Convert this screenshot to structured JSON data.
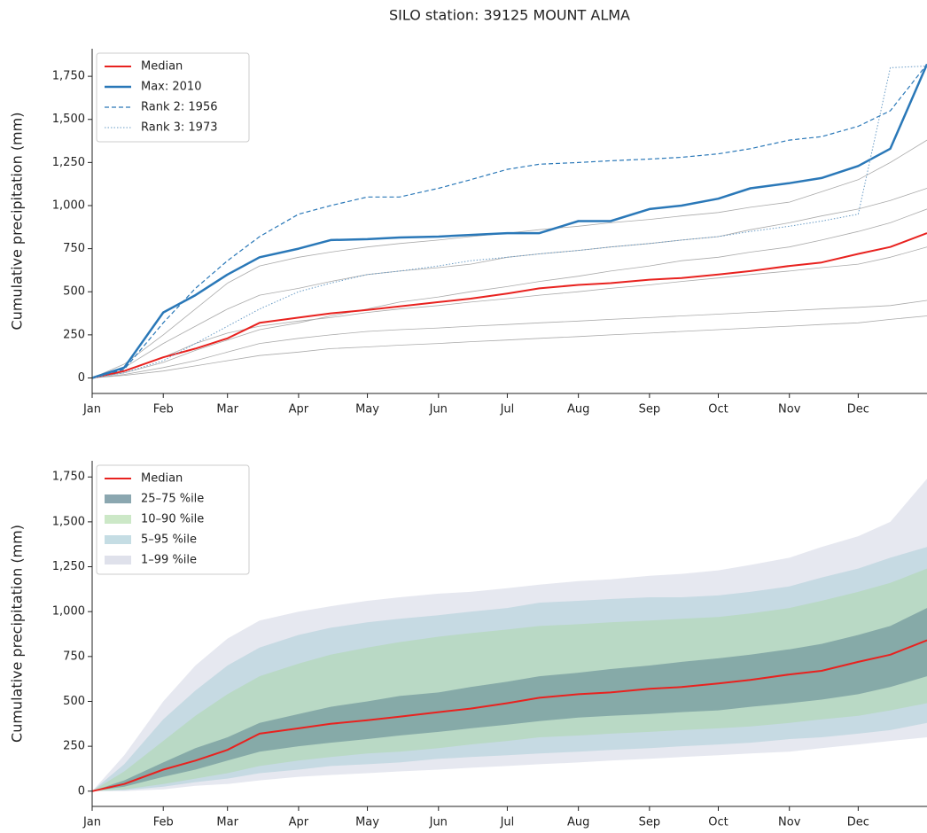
{
  "title": "SILO station: 39125 MOUNT ALMA",
  "chart_data": [
    {
      "type": "line",
      "ylabel": "Cumulative precipitation (mm)",
      "x": [
        1,
        15,
        32,
        46,
        60,
        74,
        91,
        105,
        121,
        135,
        152,
        166,
        182,
        196,
        213,
        227,
        244,
        258,
        274,
        288,
        305,
        319,
        335,
        349,
        365
      ],
      "xlim": [
        1,
        365
      ],
      "xticks": [
        {
          "value": 1,
          "label": "Jan"
        },
        {
          "value": 32,
          "label": "Feb"
        },
        {
          "value": 60,
          "label": "Mar"
        },
        {
          "value": 91,
          "label": "Apr"
        },
        {
          "value": 121,
          "label": "May"
        },
        {
          "value": 152,
          "label": "Jun"
        },
        {
          "value": 182,
          "label": "Jul"
        },
        {
          "value": 213,
          "label": "Aug"
        },
        {
          "value": 244,
          "label": "Sep"
        },
        {
          "value": 274,
          "label": "Oct"
        },
        {
          "value": 305,
          "label": "Nov"
        },
        {
          "value": 335,
          "label": "Dec"
        }
      ],
      "ylim": [
        -90,
        1910
      ],
      "yticks": [
        0,
        250,
        500,
        750,
        {
          "value": 1000,
          "label": "1,000"
        },
        {
          "value": 1250,
          "label": "1,250"
        },
        {
          "value": 1500,
          "label": "1,500"
        },
        {
          "value": 1750,
          "label": "1,750"
        }
      ],
      "legend": "upper left",
      "series": [
        {
          "color": "#aaaaaa",
          "width": 0.8,
          "style": "solid",
          "values": [
            0,
            20,
            60,
            100,
            150,
            200,
            230,
            250,
            270,
            280,
            290,
            300,
            310,
            320,
            330,
            340,
            350,
            360,
            370,
            380,
            390,
            400,
            410,
            420,
            450
          ]
        },
        {
          "color": "#aaaaaa",
          "width": 0.8,
          "style": "solid",
          "values": [
            0,
            60,
            200,
            300,
            400,
            480,
            520,
            560,
            600,
            620,
            640,
            660,
            700,
            720,
            740,
            760,
            780,
            800,
            820,
            860,
            900,
            940,
            980,
            1030,
            1100
          ]
        },
        {
          "color": "#aaaaaa",
          "width": 0.8,
          "style": "solid",
          "values": [
            0,
            40,
            120,
            200,
            260,
            300,
            330,
            350,
            380,
            400,
            420,
            440,
            460,
            480,
            500,
            520,
            540,
            560,
            580,
            600,
            620,
            640,
            660,
            700,
            760
          ]
        },
        {
          "color": "#aaaaaa",
          "width": 0.8,
          "style": "solid",
          "values": [
            0,
            80,
            250,
            400,
            550,
            650,
            700,
            730,
            760,
            780,
            800,
            820,
            840,
            860,
            880,
            900,
            920,
            940,
            960,
            990,
            1020,
            1080,
            1150,
            1250,
            1380
          ]
        },
        {
          "color": "#aaaaaa",
          "width": 0.8,
          "style": "solid",
          "values": [
            0,
            15,
            40,
            70,
            100,
            130,
            150,
            170,
            180,
            190,
            200,
            210,
            220,
            230,
            240,
            250,
            260,
            270,
            280,
            290,
            300,
            310,
            320,
            340,
            360
          ]
        },
        {
          "color": "#aaaaaa",
          "width": 0.8,
          "style": "solid",
          "values": [
            0,
            30,
            90,
            160,
            220,
            280,
            320,
            360,
            400,
            440,
            470,
            500,
            530,
            560,
            590,
            620,
            650,
            680,
            700,
            730,
            760,
            800,
            850,
            900,
            980
          ]
        },
        {
          "name": "Median",
          "color": "#e8221f",
          "width": 2,
          "style": "solid",
          "values": [
            0,
            40,
            120,
            170,
            230,
            320,
            350,
            375,
            395,
            415,
            440,
            460,
            490,
            520,
            540,
            550,
            570,
            580,
            600,
            620,
            650,
            670,
            720,
            760,
            840
          ]
        },
        {
          "name": "Max: 2010",
          "color": "#2a78b8",
          "width": 2.5,
          "style": "solid",
          "values": [
            0,
            60,
            380,
            480,
            600,
            700,
            750,
            800,
            805,
            815,
            820,
            830,
            840,
            840,
            910,
            910,
            980,
            1000,
            1040,
            1100,
            1130,
            1160,
            1230,
            1330,
            1820
          ]
        },
        {
          "name": "Rank 2: 1956",
          "color": "#2a78b8",
          "width": 1.2,
          "style": "dashed",
          "values": [
            0,
            50,
            320,
            520,
            680,
            820,
            950,
            1000,
            1050,
            1050,
            1100,
            1150,
            1210,
            1240,
            1250,
            1260,
            1270,
            1280,
            1300,
            1330,
            1380,
            1400,
            1460,
            1550,
            1820
          ]
        },
        {
          "name": "Rank 3: 1973",
          "color": "#6a9cc6",
          "width": 1,
          "style": "dotted",
          "values": [
            0,
            30,
            100,
            200,
            300,
            400,
            500,
            550,
            600,
            620,
            650,
            680,
            700,
            720,
            740,
            760,
            780,
            800,
            820,
            850,
            880,
            910,
            950,
            1800,
            1810
          ]
        }
      ]
    },
    {
      "type": "area",
      "ylabel": "Cumulative precipitation (mm)",
      "x": [
        1,
        15,
        32,
        46,
        60,
        74,
        91,
        105,
        121,
        135,
        152,
        166,
        182,
        196,
        213,
        227,
        244,
        258,
        274,
        288,
        305,
        319,
        335,
        349,
        365
      ],
      "xlim": [
        1,
        365
      ],
      "xticks": [
        {
          "value": 1,
          "label": "Jan"
        },
        {
          "value": 32,
          "label": "Feb"
        },
        {
          "value": 60,
          "label": "Mar"
        },
        {
          "value": 91,
          "label": "Apr"
        },
        {
          "value": 121,
          "label": "May"
        },
        {
          "value": 152,
          "label": "Jun"
        },
        {
          "value": 182,
          "label": "Jul"
        },
        {
          "value": 213,
          "label": "Aug"
        },
        {
          "value": 244,
          "label": "Sep"
        },
        {
          "value": 274,
          "label": "Oct"
        },
        {
          "value": 305,
          "label": "Nov"
        },
        {
          "value": 335,
          "label": "Dec"
        }
      ],
      "ylim": [
        -85,
        1840
      ],
      "yticks": [
        0,
        250,
        500,
        750,
        {
          "value": 1000,
          "label": "1,000"
        },
        {
          "value": 1250,
          "label": "1,250"
        },
        {
          "value": 1500,
          "label": "1,500"
        },
        {
          "value": 1750,
          "label": "1,750"
        }
      ],
      "legend": "upper left",
      "series": [
        {
          "name": "Median",
          "color": "#e8221f",
          "width": 2,
          "style": "solid",
          "values": [
            0,
            40,
            120,
            170,
            230,
            320,
            350,
            375,
            395,
            415,
            440,
            460,
            490,
            520,
            540,
            550,
            570,
            580,
            600,
            620,
            650,
            670,
            720,
            760,
            840
          ]
        },
        {
          "name": "25–75 %ile",
          "color": "#5d8490",
          "opacity": 0.55,
          "low": [
            0,
            25,
            80,
            120,
            170,
            220,
            250,
            270,
            290,
            310,
            330,
            350,
            370,
            390,
            410,
            420,
            430,
            440,
            450,
            470,
            490,
            510,
            540,
            580,
            640
          ],
          "high": [
            0,
            60,
            160,
            240,
            300,
            380,
            430,
            470,
            500,
            530,
            550,
            580,
            610,
            640,
            660,
            680,
            700,
            720,
            740,
            760,
            790,
            820,
            870,
            920,
            1020
          ]
        },
        {
          "name": "10–90 %ile",
          "color": "#a8d8a0",
          "opacity": 0.45,
          "low": [
            0,
            10,
            40,
            70,
            100,
            140,
            170,
            190,
            210,
            220,
            240,
            260,
            280,
            300,
            310,
            320,
            330,
            340,
            350,
            360,
            380,
            400,
            420,
            450,
            490
          ],
          "high": [
            0,
            110,
            280,
            420,
            540,
            640,
            710,
            760,
            800,
            830,
            860,
            880,
            900,
            920,
            930,
            940,
            950,
            960,
            970,
            990,
            1020,
            1060,
            1110,
            1160,
            1240
          ]
        },
        {
          "name": "5–95 %ile",
          "color": "#a6cbd6",
          "opacity": 0.5,
          "low": [
            0,
            5,
            25,
            50,
            70,
            100,
            120,
            140,
            150,
            160,
            180,
            190,
            200,
            210,
            220,
            230,
            240,
            250,
            260,
            270,
            290,
            300,
            320,
            340,
            380
          ],
          "high": [
            0,
            150,
            400,
            560,
            700,
            800,
            870,
            910,
            940,
            960,
            980,
            1000,
            1020,
            1050,
            1060,
            1070,
            1080,
            1080,
            1090,
            1110,
            1140,
            1190,
            1240,
            1300,
            1360
          ]
        },
        {
          "name": "1–99 %ile",
          "color": "#d6d9e6",
          "opacity": 0.6,
          "low": [
            0,
            0,
            10,
            30,
            40,
            60,
            80,
            90,
            100,
            110,
            120,
            130,
            140,
            150,
            160,
            170,
            180,
            190,
            200,
            210,
            220,
            240,
            260,
            280,
            300
          ],
          "high": [
            0,
            200,
            500,
            700,
            850,
            950,
            1000,
            1030,
            1060,
            1080,
            1100,
            1110,
            1130,
            1150,
            1170,
            1180,
            1200,
            1210,
            1230,
            1260,
            1300,
            1360,
            1420,
            1500,
            1740
          ]
        }
      ]
    }
  ]
}
